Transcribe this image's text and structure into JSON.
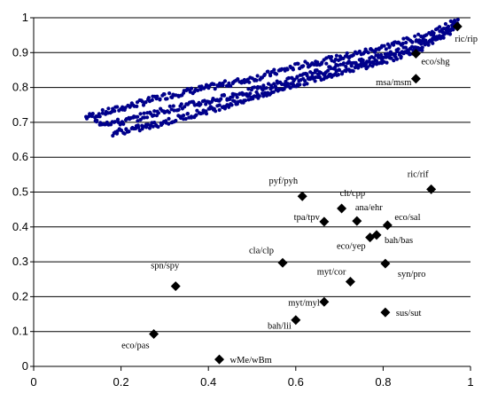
{
  "chart_data": {
    "type": "scatter",
    "xlim": [
      0,
      1
    ],
    "ylim": [
      0,
      1
    ],
    "x_ticks": [
      "0",
      "0.2",
      "0.4",
      "0.6",
      "0.8",
      "1"
    ],
    "y_ticks": [
      "0",
      "0.1",
      "0.2",
      "0.3",
      "0.4",
      "0.5",
      "0.6",
      "0.7",
      "0.8",
      "0.9",
      "1"
    ],
    "grid": "horizontal",
    "legend": "none",
    "colors": {
      "cloud": "#00008b",
      "labeled": "#000000"
    },
    "cloud_series": {
      "marker": "dot",
      "bands": [
        {
          "x": [
            0.12,
            0.2,
            0.3,
            0.4,
            0.5,
            0.6,
            0.7,
            0.8,
            0.9,
            0.97
          ],
          "y": [
            0.715,
            0.74,
            0.775,
            0.8,
            0.825,
            0.86,
            0.885,
            0.915,
            0.95,
            0.99
          ]
        },
        {
          "x": [
            0.14,
            0.2,
            0.3,
            0.4,
            0.5,
            0.6,
            0.7,
            0.8,
            0.9,
            0.97
          ],
          "y": [
            0.7,
            0.7,
            0.735,
            0.76,
            0.79,
            0.825,
            0.86,
            0.89,
            0.93,
            0.98
          ]
        },
        {
          "x": [
            0.18,
            0.25,
            0.3,
            0.4,
            0.5,
            0.6,
            0.7,
            0.8,
            0.9,
            0.97
          ],
          "y": [
            0.67,
            0.685,
            0.7,
            0.735,
            0.77,
            0.81,
            0.845,
            0.875,
            0.92,
            0.975
          ]
        }
      ]
    },
    "labeled_points": [
      {
        "label": "ric/rip",
        "x": 0.97,
        "y": 0.975
      },
      {
        "label": "eco/shg",
        "x": 0.875,
        "y": 0.897
      },
      {
        "label": "msa/msm",
        "x": 0.875,
        "y": 0.825
      },
      {
        "label": "pyf/pyh",
        "x": 0.615,
        "y": 0.488
      },
      {
        "label": "ric/rif",
        "x": 0.91,
        "y": 0.508
      },
      {
        "label": "clt/cpp",
        "x": 0.705,
        "y": 0.453
      },
      {
        "label": "ana/ehr",
        "x": 0.74,
        "y": 0.417
      },
      {
        "label": "tpa/tpv",
        "x": 0.665,
        "y": 0.415
      },
      {
        "label": "eco/sal",
        "x": 0.81,
        "y": 0.405
      },
      {
        "label": "eco/yep",
        "x": 0.77,
        "y": 0.37
      },
      {
        "label": "bah/bas",
        "x": 0.785,
        "y": 0.377
      },
      {
        "label": "cla/clp",
        "x": 0.57,
        "y": 0.297
      },
      {
        "label": "syn/pro",
        "x": 0.805,
        "y": 0.295
      },
      {
        "label": "spn/spy",
        "x": 0.325,
        "y": 0.23
      },
      {
        "label": "myt/cor",
        "x": 0.725,
        "y": 0.243
      },
      {
        "label": "myt/myl",
        "x": 0.665,
        "y": 0.185
      },
      {
        "label": "sus/sut",
        "x": 0.805,
        "y": 0.155
      },
      {
        "label": "bah/lii",
        "x": 0.6,
        "y": 0.133
      },
      {
        "label": "eco/pas",
        "x": 0.275,
        "y": 0.093
      },
      {
        "label": "wMe/wBm",
        "x": 0.425,
        "y": 0.02
      }
    ]
  }
}
